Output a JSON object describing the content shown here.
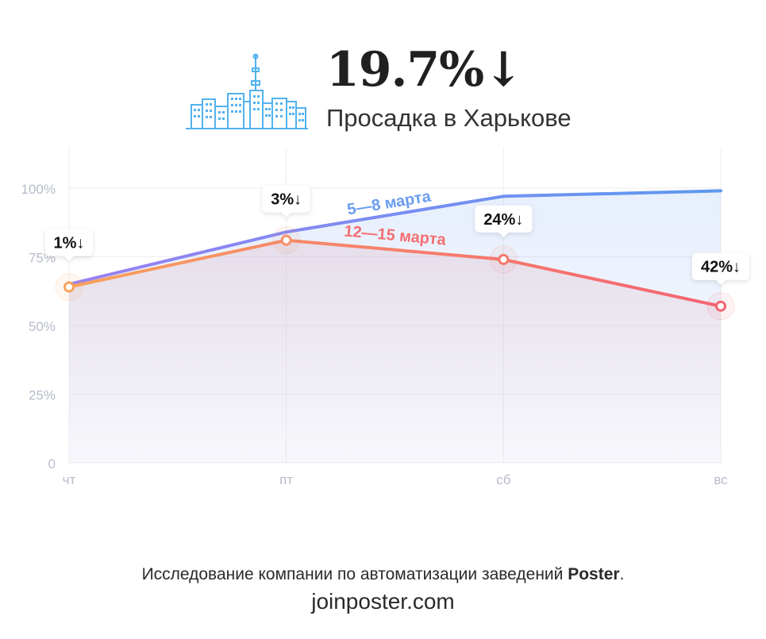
{
  "header": {
    "headline": "19.7%↓",
    "subtitle": "Просадка в Харькове",
    "icon": "city-skyline-icon"
  },
  "colors": {
    "series_blue": "#6a9cf0",
    "series_purple": "#8f82f3",
    "series_red": "#f46f72",
    "series_orange": "#f9a25b",
    "axis": "#b7bccb",
    "grid": "#eeeeee",
    "icon": "#52b2ee"
  },
  "chart_data": {
    "type": "line",
    "categories": [
      "чт",
      "пт",
      "сб",
      "вс"
    ],
    "yticks": [
      "0",
      "25%",
      "50%",
      "75%",
      "100%"
    ],
    "ylim": [
      0,
      115
    ],
    "grid": true,
    "series": [
      {
        "name": "5—8 марта",
        "values": [
          65,
          84,
          97,
          99
        ]
      },
      {
        "name": "12—15 марта",
        "values": [
          64,
          81,
          74,
          57
        ]
      }
    ],
    "annotations": [
      "1%↓",
      "3%↓",
      "24%↓",
      "42%↓"
    ]
  },
  "footer": {
    "text_before": "Исследование компании по автоматизации заведений ",
    "brand": "Poster",
    "text_after": ".",
    "website": "joinposter.com"
  }
}
